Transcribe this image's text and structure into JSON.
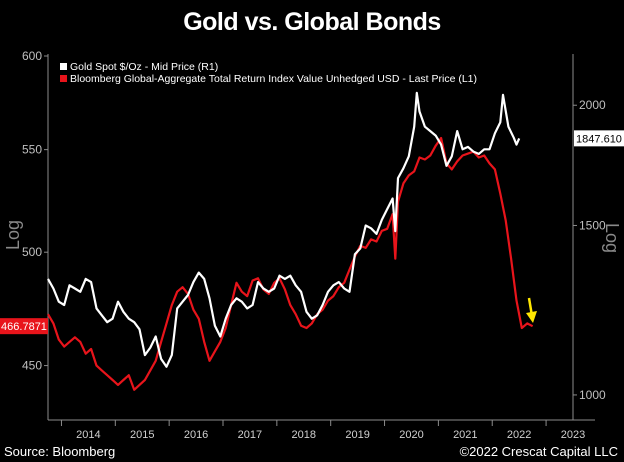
{
  "title": "Gold vs. Global Bonds",
  "footer": {
    "source": "Source: Bloomberg",
    "copyright": "©2022 Crescat Capital LLC"
  },
  "colors": {
    "background": "#000000",
    "gold_series": "#ffffff",
    "bond_series": "#e8141b",
    "arrow": "#ffe600",
    "axis": "#8c8c8c"
  },
  "chart_data": {
    "type": "line",
    "title": "Gold vs. Global Bonds",
    "legend": {
      "position": "top-left",
      "entries": [
        "Gold Spot $/Oz - Mid Price (R1)",
        "Bloomberg Global-Aggregate Total Return Index Value Unhedged USD - Last Price (L1)"
      ]
    },
    "x_ticks": [
      "2014",
      "2015",
      "2016",
      "2017",
      "2018",
      "2019",
      "2020",
      "2021",
      "2022",
      "2023"
    ],
    "x_range": [
      2013.75,
      2023.5
    ],
    "left_axis": {
      "label": "Log",
      "scale": "log",
      "range": [
        431,
        600
      ],
      "ticks": [
        "450",
        "500",
        "550",
        "600"
      ],
      "last_value_label": "466.7871"
    },
    "right_axis": {
      "label": "Log",
      "scale": "log",
      "range": [
        960,
        2250
      ],
      "ticks": [
        "1000",
        "1500",
        "2000"
      ],
      "last_value_label": "1847.610"
    },
    "series": [
      {
        "name": "Bloomberg Global-Aggregate Total Return Index Value Unhedged USD - Last Price (L1)",
        "axis": "left",
        "x": [
          2013.75,
          2013.85,
          2013.95,
          2014.05,
          2014.15,
          2014.25,
          2014.35,
          2014.45,
          2014.55,
          2014.65,
          2014.75,
          2014.85,
          2014.95,
          2015.05,
          2015.15,
          2015.25,
          2015.35,
          2015.45,
          2015.55,
          2015.65,
          2015.75,
          2015.85,
          2015.95,
          2016.05,
          2016.15,
          2016.25,
          2016.35,
          2016.45,
          2016.55,
          2016.65,
          2016.75,
          2016.85,
          2016.95,
          2017.05,
          2017.15,
          2017.25,
          2017.35,
          2017.45,
          2017.55,
          2017.65,
          2017.75,
          2017.85,
          2017.95,
          2018.05,
          2018.15,
          2018.25,
          2018.35,
          2018.45,
          2018.55,
          2018.65,
          2018.75,
          2018.85,
          2018.95,
          2019.05,
          2019.15,
          2019.25,
          2019.35,
          2019.45,
          2019.55,
          2019.65,
          2019.75,
          2019.85,
          2019.95,
          2020.05,
          2020.15,
          2020.2,
          2020.25,
          2020.35,
          2020.45,
          2020.55,
          2020.65,
          2020.75,
          2020.85,
          2020.95,
          2021.05,
          2021.15,
          2021.25,
          2021.35,
          2021.45,
          2021.55,
          2021.65,
          2021.75,
          2021.85,
          2021.95,
          2022.05,
          2022.15,
          2022.25,
          2022.35,
          2022.45,
          2022.55,
          2022.65,
          2022.75
        ],
        "values": [
          472,
          468,
          461,
          458,
          460,
          462,
          460,
          455,
          457,
          450,
          448,
          446,
          444,
          442,
          444,
          446,
          440,
          442,
          444,
          448,
          452,
          460,
          468,
          476,
          482,
          484,
          481,
          474,
          470,
          460,
          452,
          456,
          460,
          466,
          476,
          486,
          482,
          480,
          487,
          488,
          483,
          481,
          486,
          488,
          483,
          476,
          472,
          467,
          466,
          468,
          472,
          474,
          478,
          480,
          484,
          486,
          492,
          498,
          503,
          502,
          506,
          505,
          510,
          511,
          518,
          497,
          524,
          533,
          537,
          539,
          546,
          545,
          547,
          552,
          556,
          543,
          540,
          544,
          547,
          548,
          549,
          546,
          547,
          543,
          540,
          528,
          515,
          497,
          478,
          466,
          468,
          466.7871
        ]
      },
      {
        "name": "Gold Spot $/Oz - Mid Price (R1)",
        "axis": "right",
        "x": [
          2013.75,
          2013.85,
          2013.95,
          2014.05,
          2014.15,
          2014.25,
          2014.35,
          2014.45,
          2014.55,
          2014.65,
          2014.75,
          2014.85,
          2014.95,
          2015.05,
          2015.15,
          2015.25,
          2015.35,
          2015.45,
          2015.55,
          2015.65,
          2015.75,
          2015.85,
          2015.95,
          2016.05,
          2016.15,
          2016.25,
          2016.35,
          2016.45,
          2016.55,
          2016.65,
          2016.75,
          2016.85,
          2016.95,
          2017.05,
          2017.15,
          2017.25,
          2017.35,
          2017.45,
          2017.55,
          2017.65,
          2017.75,
          2017.85,
          2017.95,
          2018.05,
          2018.15,
          2018.25,
          2018.35,
          2018.45,
          2018.55,
          2018.65,
          2018.75,
          2018.85,
          2018.95,
          2019.05,
          2019.15,
          2019.25,
          2019.35,
          2019.45,
          2019.55,
          2019.65,
          2019.75,
          2019.85,
          2019.95,
          2020.05,
          2020.15,
          2020.2,
          2020.25,
          2020.35,
          2020.45,
          2020.55,
          2020.6,
          2020.65,
          2020.75,
          2020.85,
          2020.95,
          2021.05,
          2021.15,
          2021.25,
          2021.35,
          2021.45,
          2021.55,
          2021.65,
          2021.75,
          2021.85,
          2021.95,
          2022.05,
          2022.15,
          2022.2,
          2022.3,
          2022.4,
          2022.45,
          2022.5
        ],
        "values": [
          1320,
          1290,
          1250,
          1240,
          1300,
          1290,
          1280,
          1320,
          1310,
          1230,
          1210,
          1190,
          1200,
          1250,
          1220,
          1200,
          1190,
          1170,
          1100,
          1120,
          1150,
          1090,
          1070,
          1100,
          1230,
          1250,
          1270,
          1310,
          1340,
          1320,
          1260,
          1180,
          1150,
          1200,
          1240,
          1260,
          1250,
          1230,
          1240,
          1310,
          1290,
          1280,
          1290,
          1330,
          1320,
          1330,
          1300,
          1280,
          1220,
          1200,
          1210,
          1240,
          1280,
          1300,
          1310,
          1290,
          1280,
          1400,
          1420,
          1500,
          1490,
          1470,
          1520,
          1560,
          1600,
          1480,
          1680,
          1720,
          1770,
          1900,
          2060,
          1970,
          1900,
          1880,
          1860,
          1820,
          1730,
          1770,
          1880,
          1800,
          1810,
          1790,
          1780,
          1800,
          1800,
          1870,
          1920,
          2050,
          1900,
          1850,
          1820,
          1847.61
        ]
      }
    ],
    "annotations": [
      {
        "type": "arrow",
        "direction": "down",
        "color": "yellow",
        "near": "2022.65"
      }
    ]
  }
}
